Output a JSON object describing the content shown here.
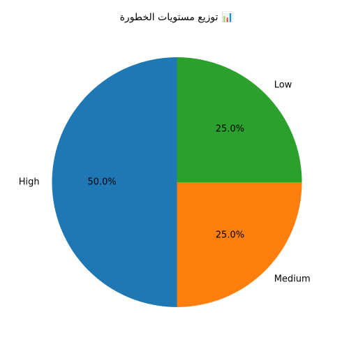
{
  "chart_data": {
    "type": "pie",
    "title": "📊 توزيع مستويات الخطورة",
    "categories": [
      "High",
      "Medium",
      "Low"
    ],
    "values": [
      50.0,
      25.0,
      25.0
    ],
    "percent_labels": [
      "50.0%",
      "25.0%",
      "25.0%"
    ],
    "colors": [
      "#1f77b4",
      "#ff7f0e",
      "#2ca02c"
    ],
    "start_angle_deg": 90,
    "direction": "counterclockwise",
    "legend": "none"
  }
}
